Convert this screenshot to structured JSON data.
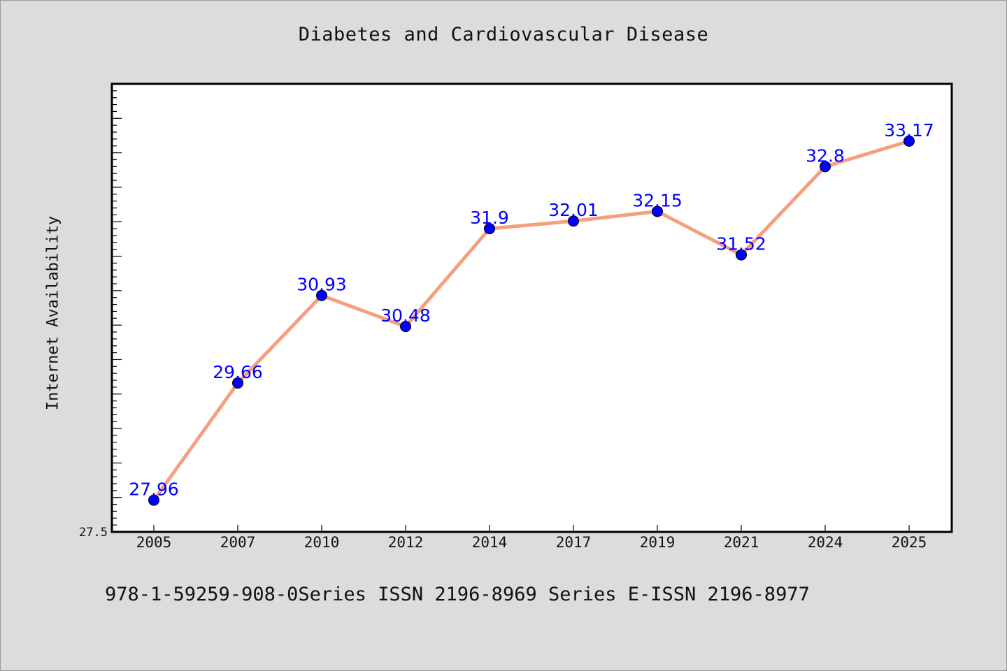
{
  "chart_data": {
    "type": "line",
    "title": "Diabetes and Cardiovascular Disease",
    "xlabel": "",
    "ylabel": "Internet Availability",
    "categories": [
      "2005",
      "2007",
      "2010",
      "2012",
      "2014",
      "2017",
      "2019",
      "2021",
      "2024",
      "2025"
    ],
    "series": [
      {
        "values": [
          27.96,
          29.66,
          30.93,
          30.48,
          31.9,
          32.01,
          32.15,
          31.52,
          32.8,
          33.17
        ]
      }
    ],
    "ylim": [
      27.5,
      34.0
    ],
    "yticks_labeled": [
      "27.5"
    ],
    "grid": false,
    "legend": "none",
    "colors": {
      "line": "#f4a07e",
      "marker": "#0000ff",
      "data_label": "#0000ff",
      "background": "#dcdcdc",
      "plot_background": "#ffffff"
    }
  },
  "footer": "978-1-59259-908-0Series ISSN 2196-8969 Series E-ISSN 2196-8977"
}
